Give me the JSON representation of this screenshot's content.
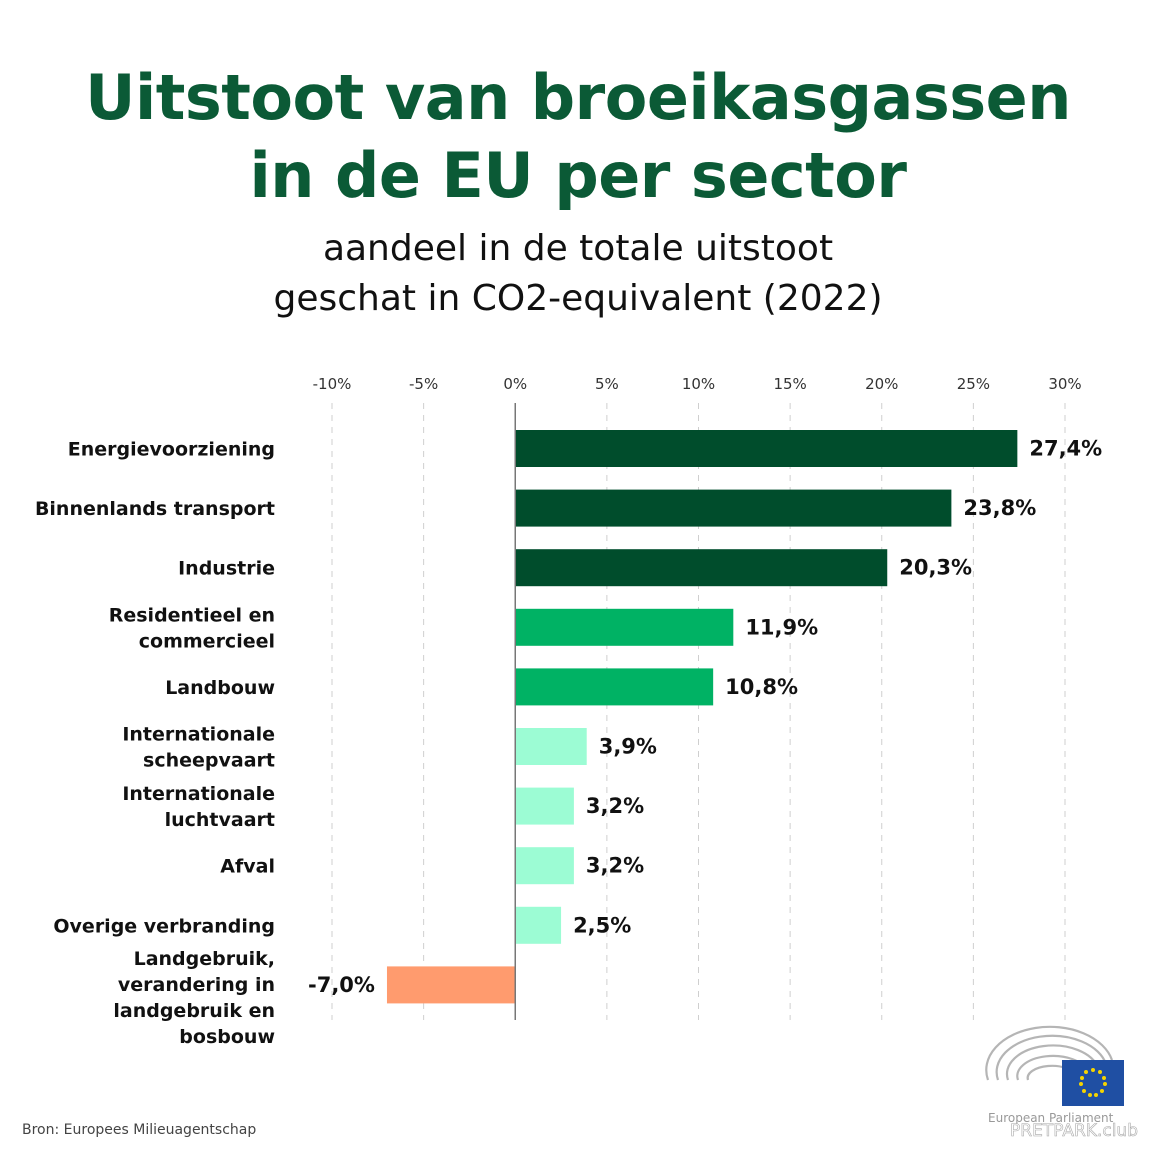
{
  "header": {
    "title_line1": "Uitstoot van broeikasgassen",
    "title_line2": "in de EU per sector",
    "subtitle_line1": "aandeel in de totale uitstoot",
    "subtitle_line2": "geschat in CO2-equivalent (2022)"
  },
  "footer": {
    "source": "Bron: Europees Milieuagentschap",
    "logo_text": "European Parliament",
    "watermark": "PRETPARK.club"
  },
  "colors": {
    "title": "#0b5a36",
    "dark_green": "#004d2c",
    "mid_green": "#00b264",
    "light_green": "#9cfcd4",
    "negative": "#ff9b6e"
  },
  "chart_data": {
    "type": "bar",
    "orientation": "horizontal",
    "title": "Uitstoot van broeikasgassen in de EU per sector",
    "subtitle": "aandeel in de totale uitstoot geschat in CO2-equivalent (2022)",
    "xlabel": "",
    "ylabel": "",
    "xlim": [
      -10,
      30
    ],
    "xticks": [
      -10,
      -5,
      0,
      5,
      10,
      15,
      20,
      25,
      30
    ],
    "xtick_labels": [
      "-10%",
      "-5%",
      "0%",
      "5%",
      "10%",
      "15%",
      "20%",
      "25%",
      "30%"
    ],
    "grid": "vertical dashed",
    "categories": [
      [
        "Energievoorziening"
      ],
      [
        "Binnenlands transport"
      ],
      [
        "Industrie"
      ],
      [
        "Residentieel en",
        "commercieel"
      ],
      [
        "Landbouw"
      ],
      [
        "Internationale",
        "scheepvaart"
      ],
      [
        "Internationale",
        "luchtvaart"
      ],
      [
        "Afval"
      ],
      [
        "Overige verbranding"
      ],
      [
        "Landgebruik,",
        "verandering in",
        "landgebruik en",
        "bosbouw"
      ]
    ],
    "values": [
      27.4,
      23.8,
      20.3,
      11.9,
      10.8,
      3.9,
      3.2,
      3.2,
      2.5,
      -7.0
    ],
    "value_labels": [
      "27,4%",
      "23,8%",
      "20,3%",
      "11,9%",
      "10,8%",
      "3,9%",
      "3,2%",
      "3,2%",
      "2,5%",
      "-7,0%"
    ],
    "color_groups": [
      "dark_green",
      "dark_green",
      "dark_green",
      "mid_green",
      "mid_green",
      "light_green",
      "light_green",
      "light_green",
      "light_green",
      "negative"
    ]
  }
}
